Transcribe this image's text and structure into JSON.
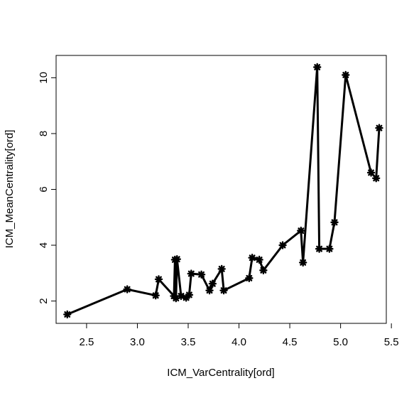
{
  "chart_data": {
    "type": "line",
    "title": "",
    "xlabel": "ICM_VarCentrality[ord]",
    "ylabel": "ICM_MeanCentrality[ord]",
    "xlim": [
      2.2,
      5.45
    ],
    "ylim": [
      1.2,
      10.8
    ],
    "xticks": [
      2.5,
      3.0,
      3.5,
      4.0,
      4.5,
      5.0,
      5.5
    ],
    "xtick_labels": [
      "2.5",
      "3.0",
      "3.5",
      "4.0",
      "4.5",
      "5.0",
      "5.5"
    ],
    "yticks": [
      2,
      4,
      6,
      8,
      10
    ],
    "ytick_labels": [
      "2",
      "4",
      "6",
      "8",
      "10"
    ],
    "grid": false,
    "line_color": "#000000",
    "marker": "star",
    "points": [
      {
        "x": 2.31,
        "y": 1.52
      },
      {
        "x": 2.9,
        "y": 2.42
      },
      {
        "x": 3.18,
        "y": 2.2
      },
      {
        "x": 3.21,
        "y": 2.78
      },
      {
        "x": 3.36,
        "y": 2.18
      },
      {
        "x": 3.37,
        "y": 3.48
      },
      {
        "x": 3.38,
        "y": 2.1
      },
      {
        "x": 3.39,
        "y": 3.5
      },
      {
        "x": 3.43,
        "y": 2.18
      },
      {
        "x": 3.48,
        "y": 2.12
      },
      {
        "x": 3.51,
        "y": 2.22
      },
      {
        "x": 3.53,
        "y": 2.98
      },
      {
        "x": 3.63,
        "y": 2.95
      },
      {
        "x": 3.71,
        "y": 2.38
      },
      {
        "x": 3.74,
        "y": 2.62
      },
      {
        "x": 3.83,
        "y": 3.15
      },
      {
        "x": 3.85,
        "y": 2.38
      },
      {
        "x": 4.1,
        "y": 2.82
      },
      {
        "x": 4.13,
        "y": 3.55
      },
      {
        "x": 4.2,
        "y": 3.48
      },
      {
        "x": 4.24,
        "y": 3.1
      },
      {
        "x": 4.43,
        "y": 4.0
      },
      {
        "x": 4.61,
        "y": 4.52
      },
      {
        "x": 4.63,
        "y": 3.38
      },
      {
        "x": 4.77,
        "y": 10.38
      },
      {
        "x": 4.79,
        "y": 3.87
      },
      {
        "x": 4.89,
        "y": 3.87
      },
      {
        "x": 4.94,
        "y": 4.82
      },
      {
        "x": 5.05,
        "y": 10.1
      },
      {
        "x": 5.3,
        "y": 6.6
      },
      {
        "x": 5.35,
        "y": 6.4
      },
      {
        "x": 5.38,
        "y": 8.2
      }
    ]
  }
}
